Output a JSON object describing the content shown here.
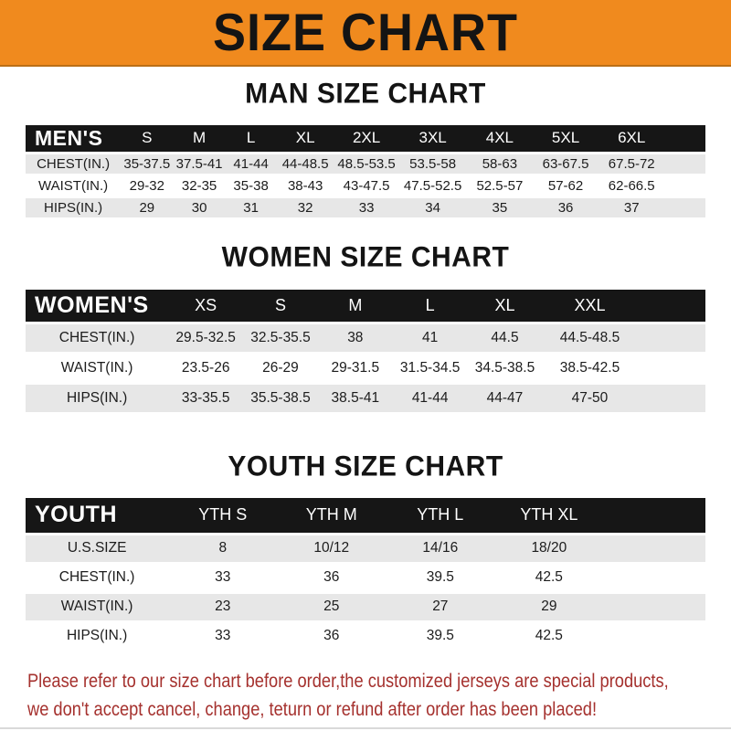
{
  "banner": {
    "title": "SIZE CHART"
  },
  "sections": [
    {
      "title": "MAN SIZE CHART",
      "table": {
        "corner_label": "MEN'S",
        "columns": [
          "S",
          "M",
          "L",
          "XL",
          "2XL",
          "3XL",
          "4XL",
          "5XL",
          "6XL"
        ],
        "rows": [
          {
            "label": "CHEST(IN.)",
            "values": [
              "35-37.5",
              "37.5-41",
              "41-44",
              "44-48.5",
              "48.5-53.5",
              "53.5-58",
              "58-63",
              "63-67.5",
              "67.5-72"
            ]
          },
          {
            "label": "WAIST(IN.)",
            "values": [
              "29-32",
              "32-35",
              "35-38",
              "38-43",
              "43-47.5",
              "47.5-52.5",
              "52.5-57",
              "57-62",
              "62-66.5"
            ]
          },
          {
            "label": "HIPS(IN.)",
            "values": [
              "29",
              "30",
              "31",
              "32",
              "33",
              "34",
              "35",
              "36",
              "37"
            ]
          }
        ]
      }
    },
    {
      "title": "WOMEN SIZE CHART",
      "table": {
        "corner_label": "WOMEN'S",
        "columns": [
          "XS",
          "S",
          "M",
          "L",
          "XL",
          "XXL"
        ],
        "rows": [
          {
            "label": "CHEST(IN.)",
            "values": [
              "29.5-32.5",
              "32.5-35.5",
              "38",
              "41",
              "44.5",
              "44.5-48.5"
            ]
          },
          {
            "label": "WAIST(IN.)",
            "values": [
              "23.5-26",
              "26-29",
              "29-31.5",
              "31.5-34.5",
              "34.5-38.5",
              "38.5-42.5"
            ]
          },
          {
            "label": "HIPS(IN.)",
            "values": [
              "33-35.5",
              "35.5-38.5",
              "38.5-41",
              "41-44",
              "44-47",
              "47-50"
            ]
          }
        ]
      }
    },
    {
      "title": "YOUTH SIZE CHART",
      "table": {
        "corner_label": "YOUTH",
        "columns": [
          "YTH S",
          "YTH M",
          "YTH L",
          "YTH XL"
        ],
        "rows": [
          {
            "label": "U.S.SIZE",
            "values": [
              "8",
              "10/12",
              "14/16",
              "18/20"
            ]
          },
          {
            "label": "CHEST(IN.)",
            "values": [
              "33",
              "36",
              "39.5",
              "42.5"
            ]
          },
          {
            "label": "WAIST(IN.)",
            "values": [
              "23",
              "25",
              "27",
              "29"
            ]
          },
          {
            "label": "HIPS(IN.)",
            "values": [
              "33",
              "36",
              "39.5",
              "42.5"
            ]
          }
        ]
      }
    }
  ],
  "footer": {
    "line1": "Please refer to our size chart before order,the customized jerseys are special products,",
    "line2": "we don't accept cancel, change, teturn or refund after order has been placed!"
  },
  "colors": {
    "banner_bg": "#F08A1E",
    "table_header_bg": "#161616",
    "row_alt_bg": "#E7E7E7",
    "footer_text": "#A5312E"
  }
}
